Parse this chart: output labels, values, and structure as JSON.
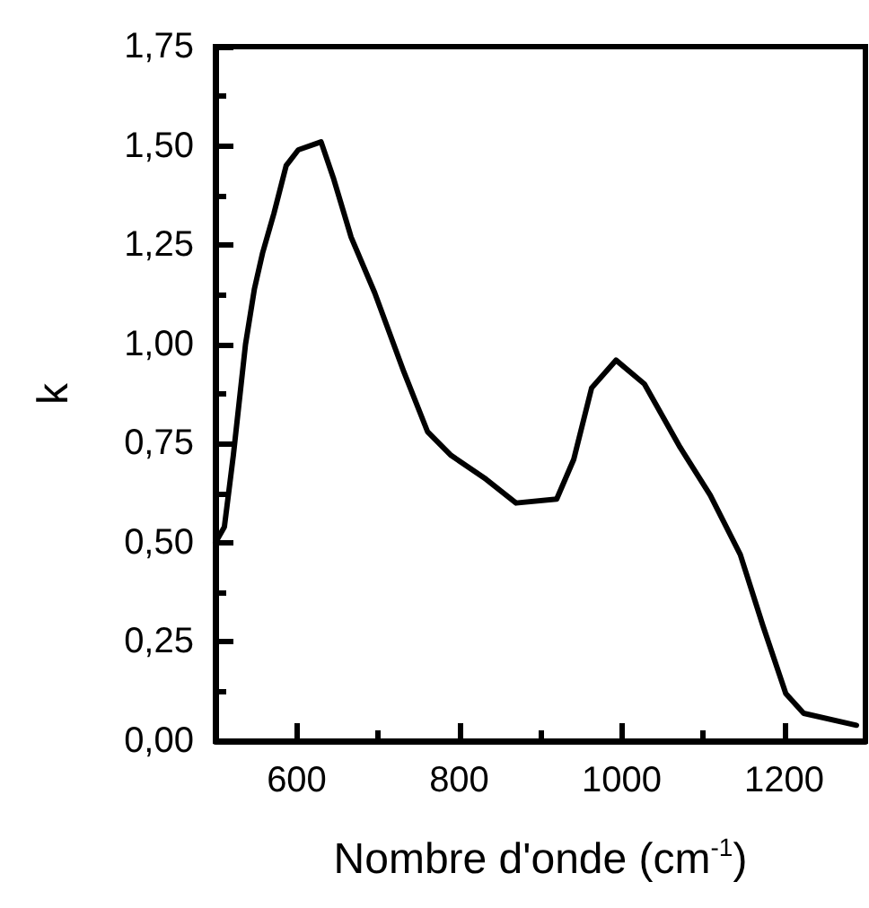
{
  "chart_data": {
    "type": "line",
    "xlabel": "Nombre d'onde (cm$^{-1}$)",
    "ylabel": "k",
    "x": [
      500,
      511,
      522,
      537,
      548,
      558,
      572,
      587,
      602,
      630,
      645,
      667,
      696,
      732,
      761,
      790,
      833,
      870,
      920,
      941,
      963,
      993,
      1028,
      1072,
      1109,
      1146,
      1174,
      1202,
      1224,
      1289
    ],
    "series": [
      {
        "color": "#000000",
        "values": [
          0.5,
          0.54,
          0.72,
          1.0,
          1.14,
          1.23,
          1.33,
          1.45,
          1.49,
          1.51,
          1.42,
          1.27,
          1.13,
          0.93,
          0.78,
          0.72,
          0.66,
          0.6,
          0.61,
          0.71,
          0.89,
          0.96,
          0.9,
          0.74,
          0.62,
          0.47,
          0.29,
          0.12,
          0.07,
          0.04
        ]
      }
    ],
    "xlim": [
      500,
      1300
    ],
    "xticks": [
      600,
      {
        "value": 700,
        "label": null
      },
      800,
      {
        "value": 900,
        "label": null
      },
      1000,
      {
        "value": 1100,
        "label": null
      },
      1200
    ],
    "ylim": [
      0,
      1.75
    ],
    "yticks": [
      {
        "value": 0,
        "label": "0,00"
      },
      {
        "value": 0.125,
        "label": null
      },
      {
        "value": 0.25,
        "label": "0,25"
      },
      {
        "value": 0.375,
        "label": null
      },
      {
        "value": 0.5,
        "label": "0,50"
      },
      {
        "value": 0.625,
        "label": null
      },
      {
        "value": 0.75,
        "label": "0,75"
      },
      {
        "value": 0.875,
        "label": null
      },
      {
        "value": 1,
        "label": "1,00"
      },
      {
        "value": 1.125,
        "label": null
      },
      {
        "value": 1.25,
        "label": "1,25"
      },
      {
        "value": 1.375,
        "label": null
      },
      {
        "value": 1.5,
        "label": "1,50"
      },
      {
        "value": 1.625,
        "label": null
      },
      {
        "value": 1.75,
        "label": "1,75"
      }
    ],
    "grid": false,
    "marker": "none",
    "line_style": "solid"
  }
}
